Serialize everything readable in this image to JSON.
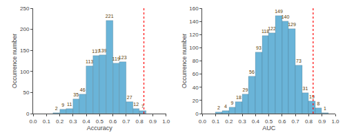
{
  "chart_data": [
    {
      "type": "bar",
      "bins": [
        0.15,
        0.2,
        0.25,
        0.3,
        0.35,
        0.4,
        0.45,
        0.5,
        0.55,
        0.6,
        0.65,
        0.7,
        0.75,
        0.8,
        0.85
      ],
      "values": [
        2,
        9,
        11,
        35,
        46,
        113,
        137,
        139,
        221,
        119,
        123,
        27,
        12,
        7
      ],
      "color": "#6ab4d8",
      "data_labels": true,
      "x_label": "Accuracy",
      "y_label": "Occurrence number",
      "xlim": [
        0.0,
        1.0
      ],
      "xticks": [
        {
          "value": 0.0,
          "label": "0.0"
        },
        0.1,
        0.2,
        0.3,
        0.4,
        0.5,
        0.6,
        0.7,
        0.8,
        0.9,
        {
          "value": 1.0,
          "label": "1.0"
        }
      ],
      "ylim": [
        0,
        250
      ],
      "yticks": [
        0,
        50,
        100,
        150,
        200,
        250
      ],
      "vline": {
        "x": 0.833,
        "color": "red",
        "line_style": "dotted"
      },
      "grid": false
    },
    {
      "type": "bar",
      "bins": [
        0.1,
        0.15,
        0.2,
        0.25,
        0.3,
        0.35,
        0.4,
        0.45,
        0.5,
        0.55,
        0.6,
        0.65,
        0.7,
        0.75,
        0.8,
        0.85,
        0.9,
        0.95
      ],
      "values": [
        2,
        4,
        9,
        18,
        29,
        56,
        93,
        118,
        122,
        149,
        140,
        129,
        73,
        31,
        19,
        8,
        1
      ],
      "color": "#6ab4d8",
      "data_labels": true,
      "x_label": "AUC",
      "y_label": "Occurrence number",
      "xlim": [
        0.0,
        1.0
      ],
      "xticks": [
        {
          "value": 0.0,
          "label": "0.0"
        },
        0.1,
        0.2,
        0.3,
        0.4,
        0.5,
        0.6,
        0.7,
        0.8,
        0.9,
        {
          "value": 1.0,
          "label": "1.0"
        }
      ],
      "ylim": [
        0,
        160
      ],
      "yticks": [
        0,
        20,
        40,
        60,
        80,
        100,
        120,
        140,
        160
      ],
      "vline": {
        "x": 0.833,
        "color": "red",
        "line_style": "dotted"
      },
      "grid": false
    }
  ]
}
